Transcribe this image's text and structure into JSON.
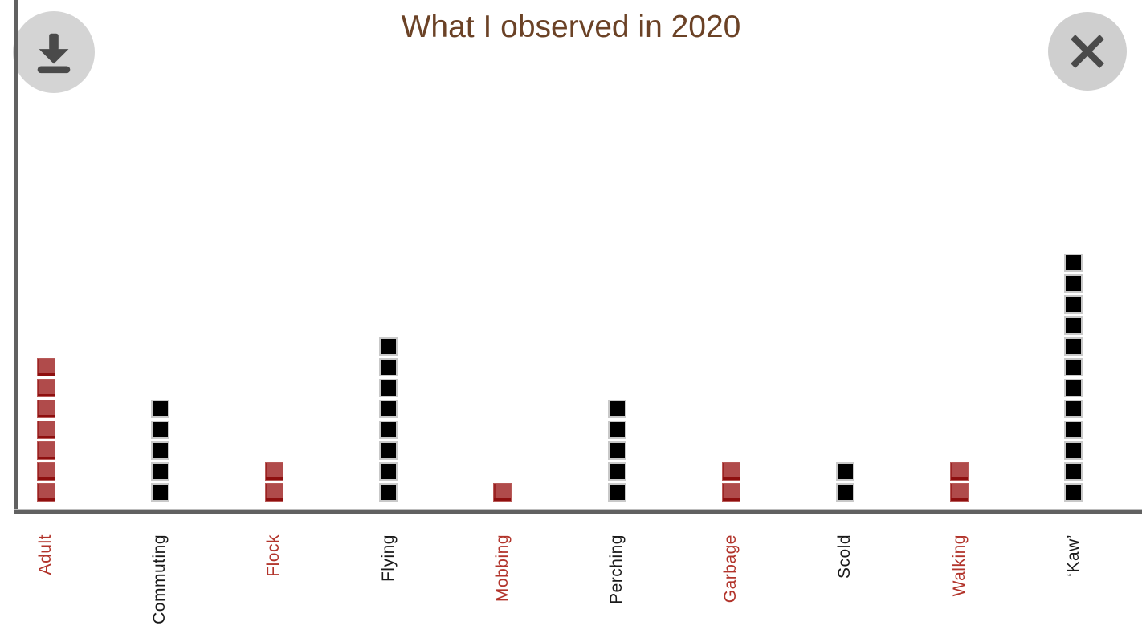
{
  "window": {
    "title": "What I observed in 2020",
    "title_color": "#6b4226"
  },
  "toolbar": {
    "download_label": "Download",
    "download_icon": "download-icon",
    "close_label": "Close",
    "close_icon": "close-icon",
    "button_bg": "#d4d4d4",
    "icon_color": "#4a4a4a"
  },
  "chart_data": {
    "type": "bar",
    "style": "waffle column chart — each small square = 1 observation",
    "title": "What I observed in 2020",
    "categories": [
      "Adult",
      "Commuting",
      "Flock",
      "Flying",
      "Mobbing",
      "Perching",
      "Garbage",
      "Scold",
      "Walking",
      "‘Kaw’"
    ],
    "values": [
      7,
      5,
      2,
      8,
      1,
      5,
      2,
      2,
      2,
      12
    ],
    "colors": [
      "red",
      "black",
      "red",
      "black",
      "red",
      "black",
      "red",
      "black",
      "red",
      "black"
    ],
    "palette": {
      "red_fill": "#b04b4b",
      "red_edge": "#8e0f0f",
      "black_fill": "#000000",
      "black_edge": "#c9c9c9",
      "label_red": "#b2342b",
      "label_black": "#1a1a1a",
      "axis_color": "#616161",
      "title_brown": "#6b4226"
    },
    "xlabel": "",
    "ylabel": "",
    "ylim": [
      0,
      12
    ],
    "grid": false,
    "legend": "none",
    "x_tick_rotation": 90
  }
}
